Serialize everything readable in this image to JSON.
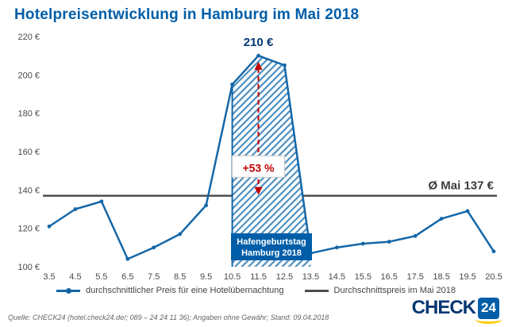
{
  "title": "Hotelpreisentwicklung in Hamburg im Mai 2018",
  "chart_data": {
    "type": "line",
    "x": [
      "3.5",
      "4.5",
      "5.5",
      "6.5",
      "7.5",
      "8.5",
      "9.5",
      "10.5",
      "11.5",
      "12.5",
      "13.5",
      "14.5",
      "15.5",
      "16.5",
      "17.5",
      "18.5",
      "19.5",
      "20.5"
    ],
    "series": [
      {
        "name": "durchschnittlicher Preis für eine Hotelübernachtung",
        "values": [
          121,
          130,
          134,
          104,
          110,
          117,
          132,
          195,
          210,
          205,
          107,
          110,
          112,
          113,
          116,
          125,
          129,
          108
        ],
        "color": "#1467a8"
      }
    ],
    "ylim": [
      100,
      220
    ],
    "ytick_step": 20,
    "ytick_suffix": " €",
    "grid": false,
    "legend_position": "bottom",
    "average_line": {
      "value": 137,
      "label": "Ø Mai 137 €",
      "name": "Durchschnittspreis im Mai 2018",
      "color": "#4d4d4d"
    },
    "highlight": {
      "from": "10.5",
      "to": "13.5",
      "label_line1": "Hafengeburtstag",
      "label_line2": "Hamburg 2018"
    },
    "annotations": {
      "peak_label": "210 €",
      "pct_label": "+53 %",
      "arrow_x": "11.5",
      "arrow_from_value": 137,
      "arrow_to_value": 206,
      "pct_center_value": 152
    }
  },
  "legend": [
    {
      "label": "durchschnittlicher Preis für eine Hotelübernachtung",
      "color": "#1467a8"
    },
    {
      "label": "Durchschnittspreis im Mai 2018",
      "color": "#4d4d4d"
    }
  ],
  "footer": {
    "source": "Quelle: CHECK24 (hotel.check24.de/; 089 – 24 24 11 36); Angaben ohne Gewähr; Stand: 09.04.2018",
    "logo": {
      "text": "CHECK",
      "number": "24"
    }
  },
  "colors": {
    "title": "#005ea8",
    "accent_red": "#c00000",
    "hatch_stripe": "#4d8fc0",
    "event_box": "#005ea8",
    "peak_label": "#063773",
    "logo_dark_blue": "#063773",
    "logo_blue": "#005ea8",
    "logo_yellow": "#ffcc00"
  }
}
